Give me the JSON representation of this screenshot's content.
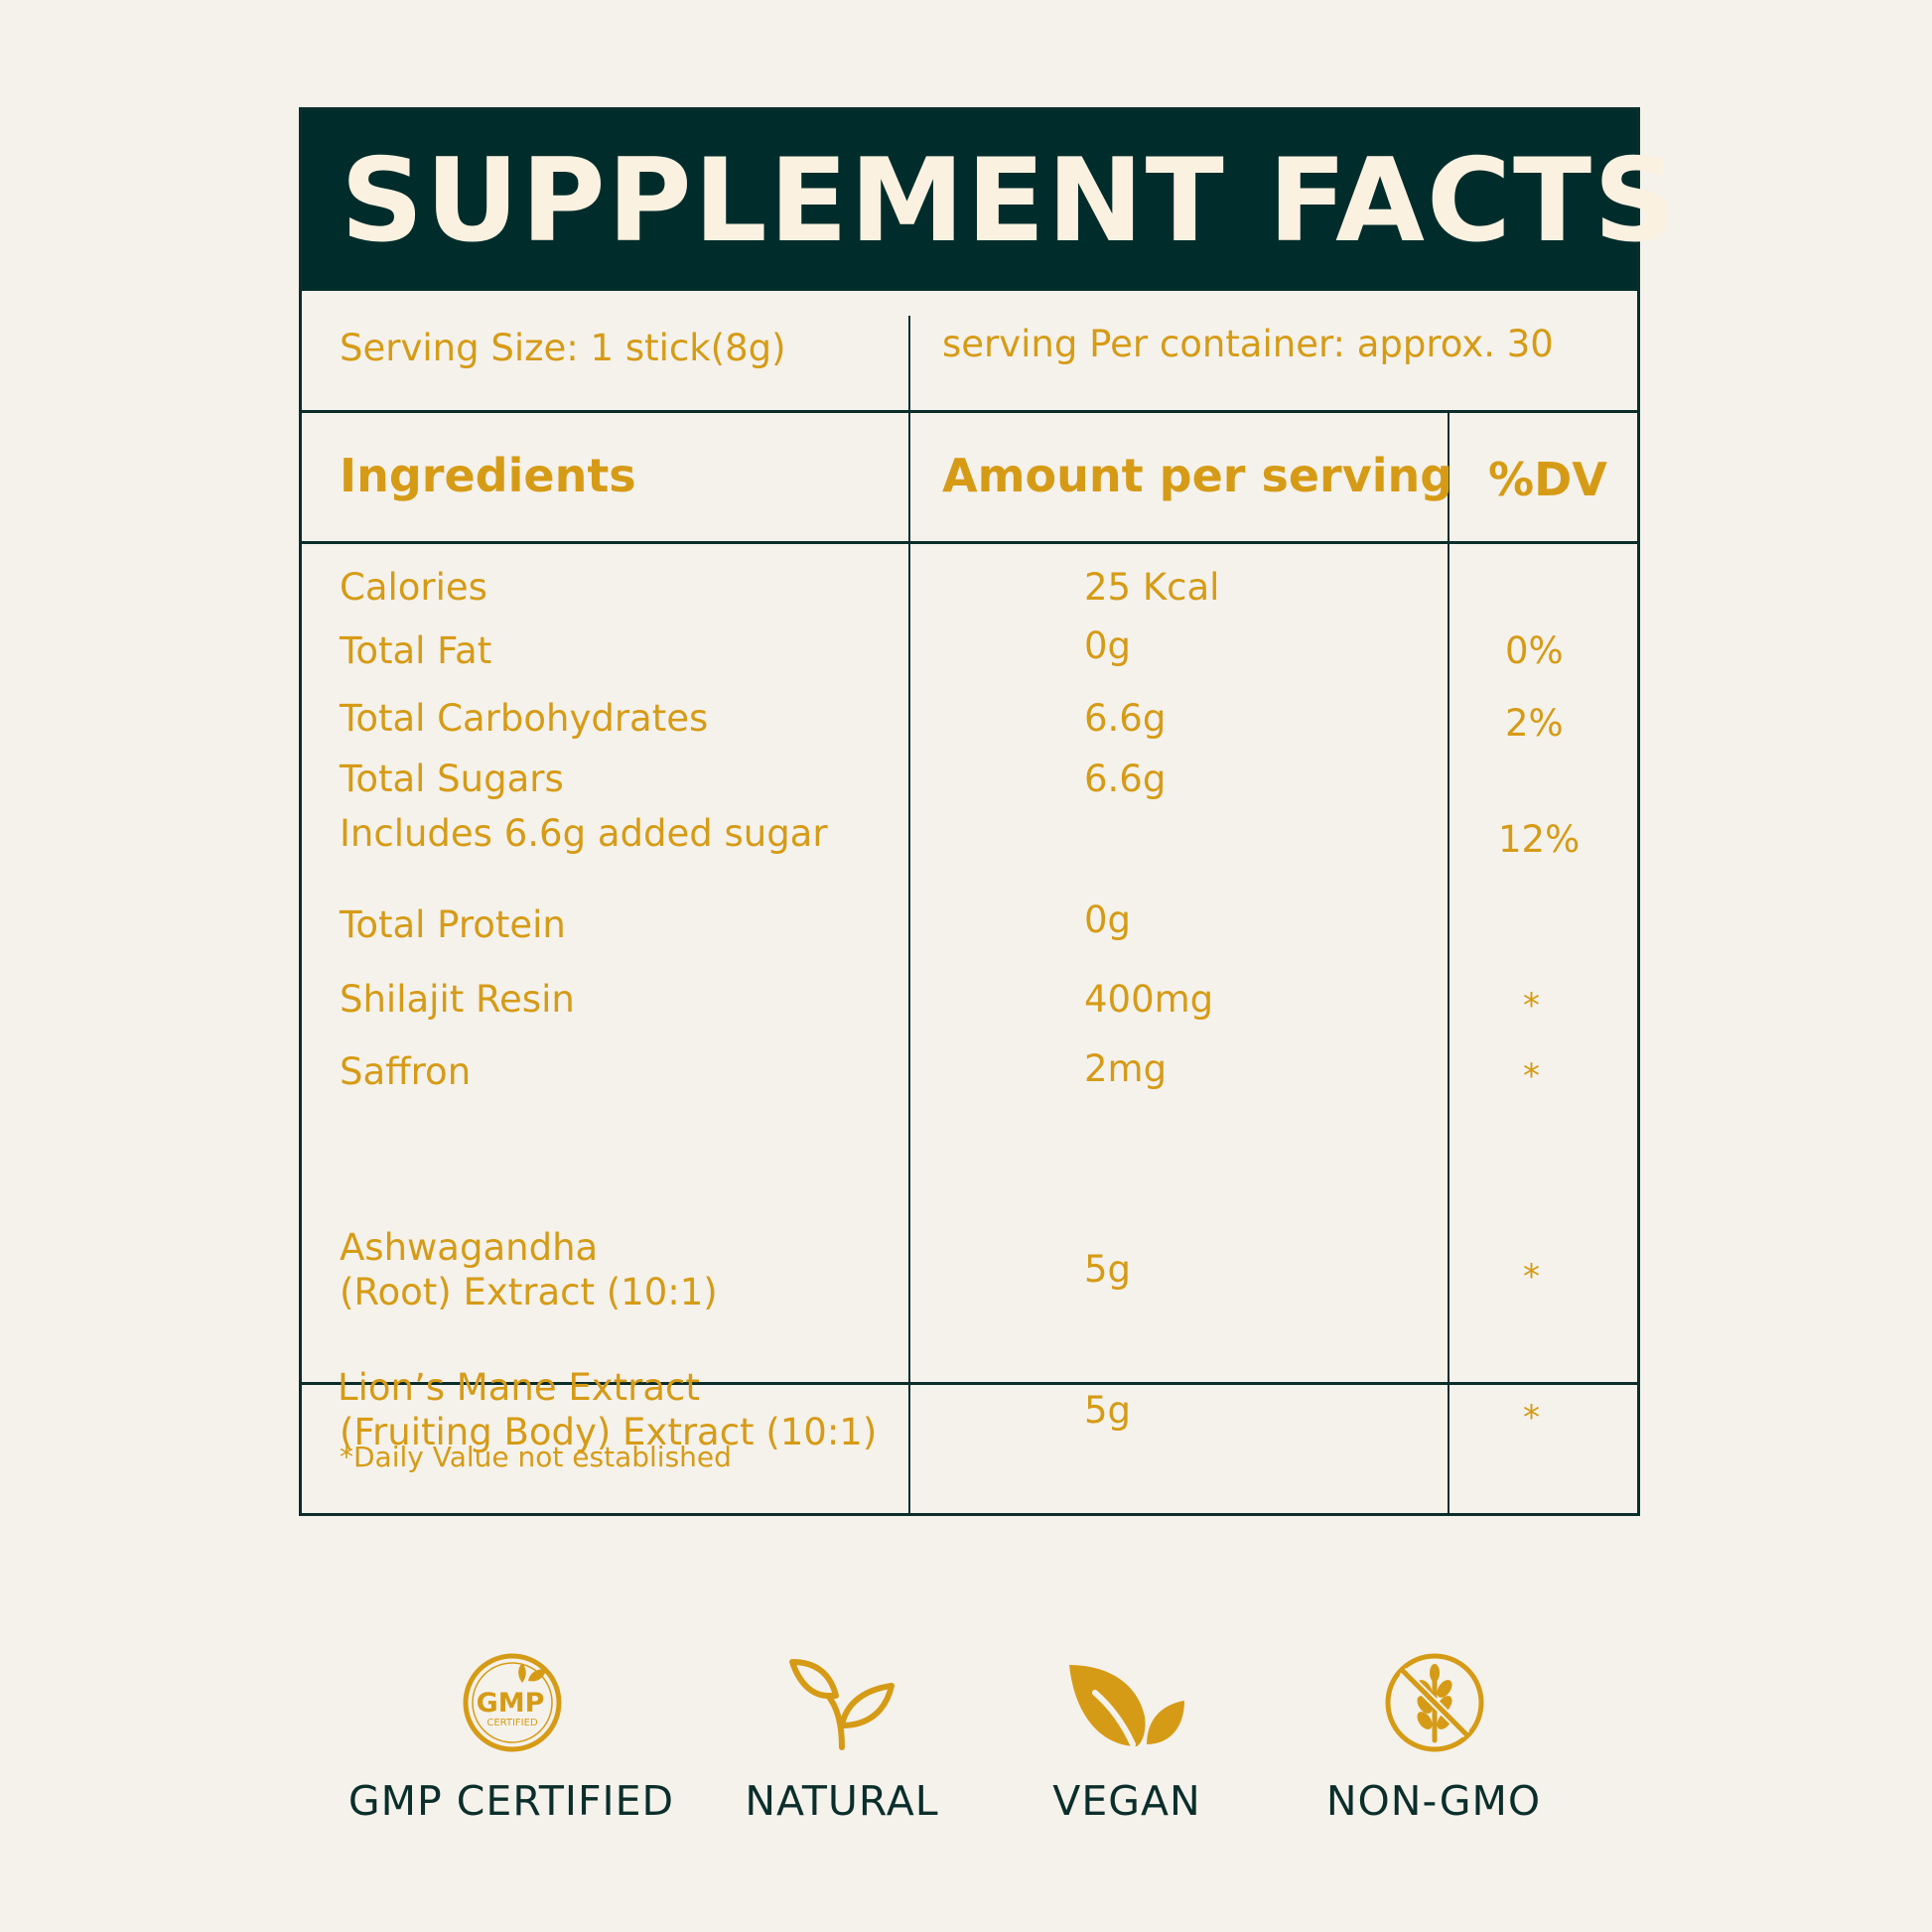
{
  "title": "SUPPLEMENT FACTS",
  "serving_size": "Serving Size: 1 stick(8g)",
  "servings_per_container": "serving Per container: approx. 30",
  "headers": {
    "ingredients": "Ingredients",
    "amount": "Amount per serving",
    "dv": "%DV"
  },
  "rows": [
    {
      "ingredient": "Calories",
      "amount": "25 Kcal",
      "dv": ""
    },
    {
      "ingredient": "Total Fat",
      "amount": "0g",
      "dv": "0%"
    },
    {
      "ingredient": "Total Carbohydrates",
      "amount": "6.6g",
      "dv": "2%"
    },
    {
      "ingredient": "Total Sugars",
      "amount": "6.6g",
      "dv": ""
    },
    {
      "ingredient": "Includes 6.6g added sugar",
      "amount": "",
      "dv": "12%"
    },
    {
      "ingredient": "Total Protein",
      "amount": "0g",
      "dv": ""
    },
    {
      "ingredient": "Shilajit Resin",
      "amount": "400mg",
      "dv": "*"
    },
    {
      "ingredient": "Saffron",
      "amount": "2mg",
      "dv": "*"
    },
    {
      "ingredient": "Ashwagandha",
      "ingredient_line2": "(Root) Extract (10:1)",
      "amount": "5g",
      "dv": "*"
    },
    {
      "ingredient": "Lion’s Mane Extract",
      "ingredient_line2": "(Fruiting Body) Extract (10:1)",
      "amount": "5g",
      "dv": "*"
    }
  ],
  "footnote": "*Daily Value not established",
  "badges": [
    {
      "label": "GMP CERTIFIED",
      "icon": "gmp-certified-icon",
      "icon_text": "GMP",
      "icon_subtext": "CERTIFIED"
    },
    {
      "label": "NATURAL",
      "icon": "sprout-icon"
    },
    {
      "label": "VEGAN",
      "icon": "leaves-icon"
    },
    {
      "label": "NON-GMO",
      "icon": "no-wheat-icon"
    }
  ],
  "colors": {
    "title_bar": "#002d2b",
    "title_text": "#fbf1e1",
    "accent_gold": "#d69b16",
    "lines": "#0b2e2b",
    "background": "#f5f2ec"
  }
}
